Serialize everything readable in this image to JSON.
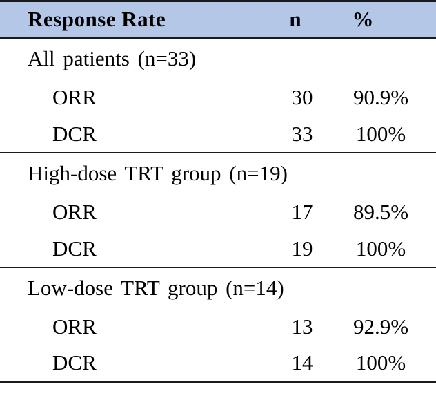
{
  "table": {
    "header": {
      "response_rate": "Response Rate",
      "n": "n",
      "percent": "%"
    },
    "sections": [
      {
        "title": "All patients (n=33)",
        "rows": [
          {
            "label": "ORR",
            "n": "30",
            "pct": "90.9%"
          },
          {
            "label": "DCR",
            "n": "33",
            "pct": "100%"
          }
        ]
      },
      {
        "title": "High-dose TRT group (n=19)",
        "rows": [
          {
            "label": "ORR",
            "n": "17",
            "pct": "89.5%"
          },
          {
            "label": "DCR",
            "n": "19",
            "pct": "100%"
          }
        ]
      },
      {
        "title": "Low-dose TRT group (n=14)",
        "rows": [
          {
            "label": "ORR",
            "n": "13",
            "pct": "92.9%"
          },
          {
            "label": "DCR",
            "n": "14",
            "pct": "100%"
          }
        ]
      }
    ]
  },
  "colors": {
    "header_bg": "#b4c7e7",
    "rule": "#1a1a1a",
    "text": "#000000",
    "background": "#ffffff"
  }
}
